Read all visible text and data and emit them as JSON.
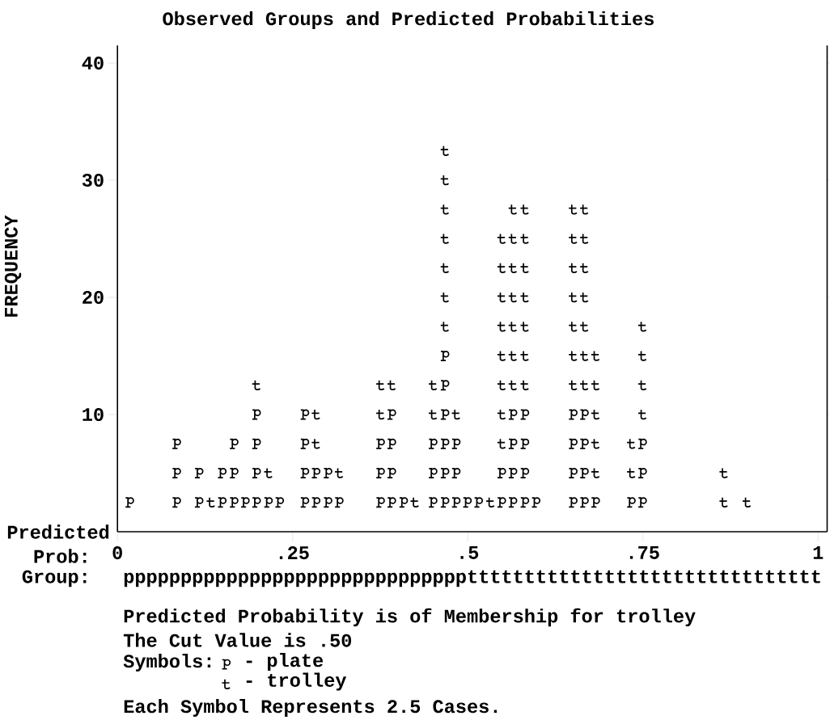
{
  "chart_data": {
    "type": "scatter",
    "title": "Observed Groups and Predicted Probabilities",
    "xlabel": "Predicted",
    "ylabel": "FREQUENCY",
    "xlim": [
      0,
      1.013
    ],
    "ylim": [
      0,
      41.5
    ],
    "legend": "bottom left",
    "legend_title": "Symbols:",
    "marker": "cross",
    "xticks": [
      0,
      {
        "value": 0.25,
        "label": ".25"
      },
      {
        "value": 0.5,
        "label": ".5"
      },
      {
        "value": 0.75,
        "label": ".75"
      },
      1
    ],
    "yticks": [
      10,
      20,
      30,
      40
    ],
    "series": [
      {
        "name": "- plate",
        "color": "#000000",
        "x": [
          0.017,
          0.084,
          0.084,
          0.084,
          0.116,
          0.116,
          0.149,
          0.149,
          0.166,
          0.166,
          0.166,
          0.182,
          0.198,
          0.198,
          0.198,
          0.198,
          0.215,
          0.231,
          0.267,
          0.267,
          0.267,
          0.267,
          0.283,
          0.283,
          0.3,
          0.3,
          0.316,
          0.375,
          0.375,
          0.375,
          0.391,
          0.391,
          0.391,
          0.391,
          0.408,
          0.45,
          0.45,
          0.45,
          0.467,
          0.467,
          0.467,
          0.467,
          0.467,
          0.467,
          0.483,
          0.483,
          0.483,
          0.499,
          0.515,
          0.548,
          0.548,
          0.564,
          0.564,
          0.564,
          0.564,
          0.581,
          0.581,
          0.581,
          0.581,
          0.597,
          0.65,
          0.65,
          0.65,
          0.65,
          0.666,
          0.666,
          0.666,
          0.666,
          0.682,
          0.733,
          0.749,
          0.749,
          0.749
        ],
        "values": [
          2.5,
          2.5,
          5,
          7.5,
          2.5,
          5,
          2.5,
          5,
          2.5,
          5,
          7.5,
          2.5,
          2.5,
          5,
          7.5,
          10,
          2.5,
          2.5,
          2.5,
          5,
          7.5,
          10,
          2.5,
          5,
          2.5,
          5,
          2.5,
          2.5,
          5,
          7.5,
          2.5,
          5,
          7.5,
          10,
          2.5,
          2.5,
          5,
          7.5,
          2.5,
          5,
          7.5,
          10,
          12.5,
          15,
          2.5,
          5,
          7.5,
          2.5,
          2.5,
          2.5,
          5,
          2.5,
          5,
          7.5,
          10,
          2.5,
          5,
          7.5,
          10,
          2.5,
          2.5,
          5,
          7.5,
          10,
          2.5,
          5,
          7.5,
          10,
          2.5,
          2.5,
          2.5,
          5,
          7.5
        ]
      },
      {
        "name": "- trolley",
        "color": "#000000",
        "x": [
          0.133,
          0.198,
          0.215,
          0.283,
          0.283,
          0.316,
          0.375,
          0.375,
          0.391,
          0.424,
          0.45,
          0.45,
          0.467,
          0.467,
          0.467,
          0.467,
          0.467,
          0.467,
          0.467,
          0.483,
          0.532,
          0.548,
          0.548,
          0.548,
          0.548,
          0.548,
          0.548,
          0.548,
          0.548,
          0.564,
          0.564,
          0.564,
          0.564,
          0.564,
          0.564,
          0.564,
          0.581,
          0.581,
          0.581,
          0.581,
          0.581,
          0.581,
          0.581,
          0.65,
          0.65,
          0.65,
          0.65,
          0.65,
          0.65,
          0.65,
          0.666,
          0.666,
          0.666,
          0.666,
          0.666,
          0.666,
          0.666,
          0.682,
          0.682,
          0.682,
          0.682,
          0.682,
          0.733,
          0.733,
          0.749,
          0.749,
          0.749,
          0.749,
          0.865,
          0.865,
          0.898
        ],
        "values": [
          2.5,
          12.5,
          5,
          7.5,
          10,
          5,
          10,
          12.5,
          12.5,
          2.5,
          10,
          12.5,
          17.5,
          20,
          22.5,
          25,
          27.5,
          30,
          32.5,
          10,
          2.5,
          7.5,
          10,
          12.5,
          15,
          17.5,
          20,
          22.5,
          25,
          12.5,
          15,
          17.5,
          20,
          22.5,
          25,
          27.5,
          12.5,
          15,
          17.5,
          20,
          22.5,
          25,
          27.5,
          12.5,
          15,
          17.5,
          20,
          22.5,
          25,
          27.5,
          12.5,
          15,
          17.5,
          20,
          22.5,
          25,
          27.5,
          5,
          7.5,
          10,
          12.5,
          15,
          5,
          7.5,
          10,
          12.5,
          15,
          17.5,
          2.5,
          5,
          2.5
        ]
      }
    ],
    "annotations": [
      "Prob:",
      "Group:",
      "ppppppppppppppppppppppppppppppttttttttttttttttttttttttttttttt",
      "Predicted Probability is of Membership for trolley",
      "The Cut Value is .50",
      "Each Symbol Represents 2.5 Cases."
    ]
  }
}
